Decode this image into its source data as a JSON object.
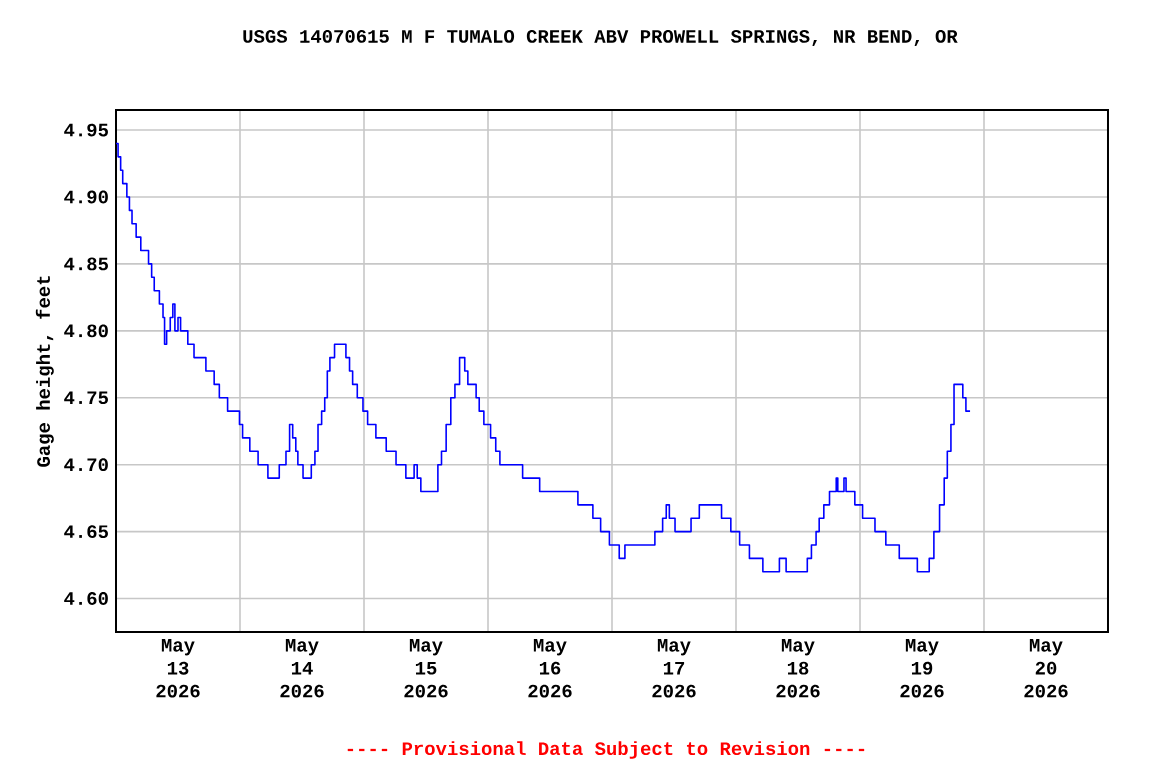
{
  "chart_data": {
    "type": "step",
    "title": "USGS 14070615 M F TUMALO CREEK ABV PROWELL SPRINGS, NR BEND, OR",
    "ylabel": "Gage height, feet",
    "annotations": [
      "---- Provisional Data Subject to Revision ----"
    ],
    "x": [
      "2026-05-13T00:00",
      "2026-05-13T00:24",
      "2026-05-13T00:54",
      "2026-05-13T01:18",
      "2026-05-13T02:06",
      "2026-05-13T02:36",
      "2026-05-13T03:06",
      "2026-05-13T03:54",
      "2026-05-13T04:48",
      "2026-05-13T06:18",
      "2026-05-13T06:54",
      "2026-05-13T07:24",
      "2026-05-13T08:24",
      "2026-05-13T09:06",
      "2026-05-13T09:24",
      "2026-05-13T09:48",
      "2026-05-13T10:30",
      "2026-05-13T11:00",
      "2026-05-13T11:24",
      "2026-05-13T12:00",
      "2026-05-13T12:30",
      "2026-05-13T13:54",
      "2026-05-13T15:06",
      "2026-05-13T17:24",
      "2026-05-13T19:00",
      "2026-05-13T20:00",
      "2026-05-13T21:36",
      "2026-05-13T23:54",
      "2026-05-14T00:30",
      "2026-05-14T01:54",
      "2026-05-14T03:30",
      "2026-05-14T05:24",
      "2026-05-14T07:36",
      "2026-05-14T08:54",
      "2026-05-14T09:36",
      "2026-05-14T10:12",
      "2026-05-14T10:48",
      "2026-05-14T11:12",
      "2026-05-14T12:12",
      "2026-05-14T13:48",
      "2026-05-14T14:30",
      "2026-05-14T15:06",
      "2026-05-14T15:48",
      "2026-05-14T16:24",
      "2026-05-14T16:54",
      "2026-05-14T17:24",
      "2026-05-14T18:18",
      "2026-05-14T20:30",
      "2026-05-14T21:12",
      "2026-05-14T21:48",
      "2026-05-14T22:42",
      "2026-05-14T23:48",
      "2026-05-15T00:42",
      "2026-05-15T02:18",
      "2026-05-15T04:18",
      "2026-05-15T06:12",
      "2026-05-15T08:06",
      "2026-05-15T09:42",
      "2026-05-15T10:18",
      "2026-05-15T11:00",
      "2026-05-15T14:18",
      "2026-05-15T15:00",
      "2026-05-15T15:54",
      "2026-05-15T16:48",
      "2026-05-15T17:36",
      "2026-05-15T18:30",
      "2026-05-15T19:30",
      "2026-05-15T20:06",
      "2026-05-15T21:42",
      "2026-05-15T22:18",
      "2026-05-15T23:12",
      "2026-05-16T00:30",
      "2026-05-16T01:30",
      "2026-05-16T02:18",
      "2026-05-16T06:42",
      "2026-05-16T10:00",
      "2026-05-16T17:24",
      "2026-05-16T20:18",
      "2026-05-16T21:48",
      "2026-05-16T23:30",
      "2026-05-17T01:24",
      "2026-05-17T02:30",
      "2026-05-17T08:18",
      "2026-05-17T09:48",
      "2026-05-17T10:30",
      "2026-05-17T11:06",
      "2026-05-17T12:12",
      "2026-05-17T15:18",
      "2026-05-17T16:54",
      "2026-05-17T21:12",
      "2026-05-17T23:00",
      "2026-05-18T00:42",
      "2026-05-18T02:36",
      "2026-05-18T05:12",
      "2026-05-18T08:24",
      "2026-05-18T09:42",
      "2026-05-18T13:48",
      "2026-05-18T14:36",
      "2026-05-18T15:30",
      "2026-05-18T16:06",
      "2026-05-18T17:00",
      "2026-05-18T18:06",
      "2026-05-18T19:24",
      "2026-05-18T19:42",
      "2026-05-18T20:54",
      "2026-05-18T21:18",
      "2026-05-18T23:00",
      "2026-05-19T00:30",
      "2026-05-19T02:54",
      "2026-05-19T05:00",
      "2026-05-19T07:36",
      "2026-05-19T11:06",
      "2026-05-19T13:24",
      "2026-05-19T14:18",
      "2026-05-19T15:24",
      "2026-05-19T16:18",
      "2026-05-19T16:54",
      "2026-05-19T17:36",
      "2026-05-19T18:12",
      "2026-05-19T19:54",
      "2026-05-19T20:30",
      "2026-05-19T21:18"
    ],
    "series": [
      {
        "color": "#0000ff",
        "values": [
          4.94,
          4.93,
          4.92,
          4.91,
          4.9,
          4.89,
          4.88,
          4.87,
          4.86,
          4.85,
          4.84,
          4.83,
          4.82,
          4.81,
          4.79,
          4.8,
          4.81,
          4.82,
          4.8,
          4.81,
          4.8,
          4.79,
          4.78,
          4.77,
          4.76,
          4.75,
          4.74,
          4.73,
          4.72,
          4.71,
          4.7,
          4.69,
          4.7,
          4.71,
          4.73,
          4.72,
          4.71,
          4.7,
          4.69,
          4.7,
          4.71,
          4.73,
          4.74,
          4.75,
          4.77,
          4.78,
          4.79,
          4.78,
          4.77,
          4.76,
          4.75,
          4.74,
          4.73,
          4.72,
          4.71,
          4.7,
          4.69,
          4.7,
          4.69,
          4.68,
          4.7,
          4.71,
          4.73,
          4.75,
          4.76,
          4.78,
          4.77,
          4.76,
          4.75,
          4.74,
          4.73,
          4.72,
          4.71,
          4.7,
          4.69,
          4.68,
          4.67,
          4.66,
          4.65,
          4.64,
          4.63,
          4.64,
          4.65,
          4.66,
          4.67,
          4.66,
          4.65,
          4.66,
          4.67,
          4.66,
          4.65,
          4.64,
          4.63,
          4.62,
          4.63,
          4.62,
          4.63,
          4.64,
          4.65,
          4.66,
          4.67,
          4.68,
          4.69,
          4.68,
          4.69,
          4.68,
          4.67,
          4.66,
          4.65,
          4.64,
          4.63,
          4.62,
          4.63,
          4.65,
          4.67,
          4.69,
          4.71,
          4.73,
          4.76,
          4.75,
          4.74,
          4.74
        ]
      }
    ],
    "xlim": [
      "2026-05-13T00:00",
      "2026-05-21T00:00"
    ],
    "xticks": [
      {
        "value": "2026-05-14",
        "label": null
      },
      {
        "value": "2026-05-15",
        "label": null
      },
      {
        "value": "2026-05-16",
        "label": null
      },
      {
        "value": "2026-05-17",
        "label": null
      },
      {
        "value": "2026-05-18",
        "label": null
      },
      {
        "value": "2026-05-19",
        "label": null
      },
      {
        "value": "2026-05-20",
        "label": null
      },
      {
        "value": "2026-05-13T12:00",
        "label": "May 13 2026"
      },
      {
        "value": "2026-05-14T12:00",
        "label": "May 14 2026"
      },
      {
        "value": "2026-05-15T12:00",
        "label": "May 15 2026"
      },
      {
        "value": "2026-05-16T12:00",
        "label": "May 16 2026"
      },
      {
        "value": "2026-05-17T12:00",
        "label": "May 17 2026"
      },
      {
        "value": "2026-05-18T12:00",
        "label": "May 18 2026"
      },
      {
        "value": "2026-05-19T12:00",
        "label": "May 19 2026"
      },
      {
        "value": "2026-05-20T12:00",
        "label": "May 20 2026"
      }
    ],
    "ylim": [
      4.575,
      4.965
    ],
    "yticks": [
      {
        "value": 4.6,
        "label": "4.60"
      },
      {
        "value": 4.65,
        "label": "4.65"
      },
      {
        "value": 4.7,
        "label": "4.70"
      },
      {
        "value": 4.75,
        "label": "4.75"
      },
      {
        "value": 4.8,
        "label": "4.80"
      },
      {
        "value": 4.85,
        "label": "4.85"
      },
      {
        "value": 4.9,
        "label": "4.90"
      },
      {
        "value": 4.95,
        "label": "4.95"
      }
    ],
    "grid": true,
    "marker": "none",
    "line_style": "solid"
  }
}
